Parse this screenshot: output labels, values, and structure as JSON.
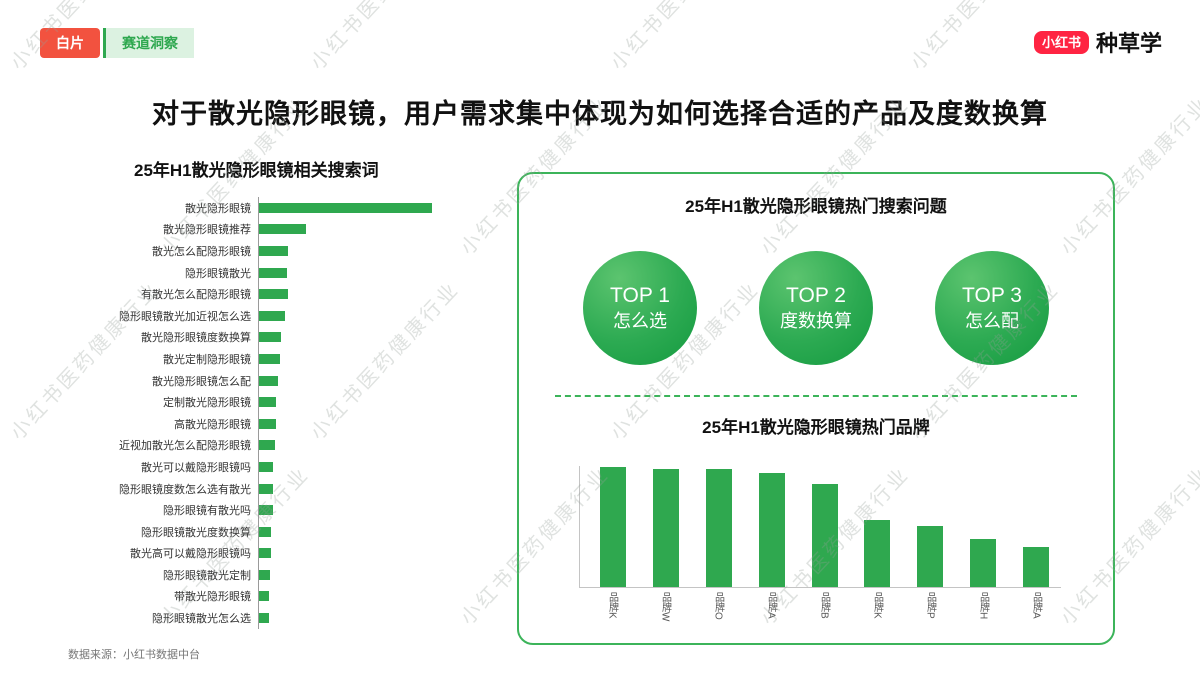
{
  "page": {
    "badge_left": "白片",
    "badge_right": "赛道洞察",
    "logo_mark": "小红书",
    "logo_text": "种草学",
    "title": "对于散光隐形眼镜，用户需求集中体现为如何选择合适的产品及度数换算",
    "source": "数据来源：小红书数据中台",
    "watermark": "小红书医药健康行业"
  },
  "colors": {
    "bar_green": "#2FA84F",
    "card_border_green": "#3CB45A",
    "badge_red": "#F2523F",
    "logo_red": "#FF2442"
  },
  "chart_data": [
    {
      "type": "bar",
      "orientation": "horizontal",
      "title": "25年H1散光隐形眼镜相关搜索词",
      "categories": [
        "散光隐形眼镜",
        "散光隐形眼镜推荐",
        "散光怎么配隐形眼镜",
        "隐形眼镜散光",
        "有散光怎么配隐形眼镜",
        "隐形眼镜散光加近视怎么选",
        "散光隐形眼镜度数换算",
        "散光定制隐形眼镜",
        "散光隐形眼镜怎么配",
        "定制散光隐形眼镜",
        "高散光隐形眼镜",
        "近视加散光怎么配隐形眼镜",
        "散光可以戴隐形眼镜吗",
        "隐形眼镜度数怎么选有散光",
        "隐形眼镜有散光吗",
        "隐形眼镜散光度数换算",
        "散光高可以戴隐形眼镜吗",
        "隐形眼镜散光定制",
        "带散光隐形眼镜",
        "隐形眼镜散光怎么选"
      ],
      "values": [
        100,
        27,
        17,
        16,
        17,
        15,
        13,
        12,
        11,
        10,
        10,
        9,
        8,
        8,
        8,
        7,
        7,
        6.5,
        6,
        6
      ],
      "value_unit": "relative-index",
      "grid": false,
      "legend": "none"
    },
    {
      "type": "table",
      "title": "25年H1散光隐形眼镜热门搜索问题",
      "items": [
        {
          "rank": "TOP 1",
          "label": "怎么选"
        },
        {
          "rank": "TOP 2",
          "label": "度数换算"
        },
        {
          "rank": "TOP 3",
          "label": "怎么配"
        }
      ]
    },
    {
      "type": "bar",
      "orientation": "vertical",
      "title": "25年H1散光隐形眼镜热门品牌",
      "categories": [
        "品牌K",
        "品牌W",
        "品牌O",
        "品牌A",
        "品牌B",
        "品牌K",
        "品牌P",
        "品牌H",
        "品牌A"
      ],
      "values": [
        100,
        98,
        98,
        95,
        86,
        56,
        51,
        40,
        33
      ],
      "value_unit": "relative-index",
      "grid": false,
      "legend": "none"
    }
  ]
}
